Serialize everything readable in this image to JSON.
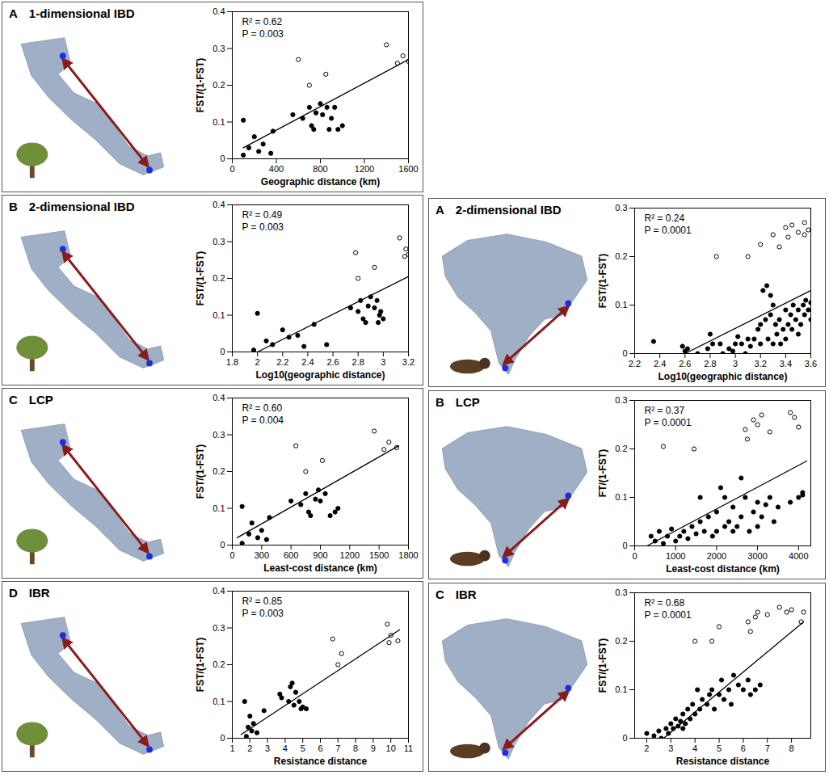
{
  "chart_data": [
    {
      "type": "scatter",
      "panel": "A",
      "title": "1-dimensional IBD",
      "x_label": "Geographic distance (km)",
      "y_label": "FST/(1-FST)",
      "annotations": [
        "R² = 0.62",
        "P = 0.003"
      ],
      "xlim": [
        0,
        1600
      ],
      "xticks": [
        0,
        400,
        800,
        1200,
        1600
      ],
      "ylim": [
        0,
        0.4
      ],
      "yticks": [
        0,
        0.1,
        0.2,
        0.3,
        0.4
      ],
      "series": [
        {
          "type": "scatter",
          "marker": "filled",
          "color": "#000000",
          "x": [
            100,
            100,
            150,
            200,
            240,
            280,
            350,
            370,
            550,
            640,
            700,
            720,
            740,
            760,
            800,
            820,
            860,
            880,
            900,
            930,
            960,
            1000
          ],
          "values": [
            0.105,
            0.01,
            0.03,
            0.06,
            0.02,
            0.04,
            0.015,
            0.075,
            0.12,
            0.11,
            0.14,
            0.09,
            0.08,
            0.125,
            0.15,
            0.12,
            0.14,
            0.08,
            0.11,
            0.14,
            0.08,
            0.09
          ]
        },
        {
          "type": "scatter",
          "marker": "open",
          "color": "#000000",
          "x": [
            600,
            700,
            850,
            1400,
            1500,
            1550,
            1600
          ],
          "values": [
            0.27,
            0.2,
            0.23,
            0.31,
            0.26,
            0.28,
            0.265
          ]
        },
        {
          "type": "line",
          "color": "#000000",
          "x": [
            100,
            1600
          ],
          "values": [
            0.03,
            0.27
          ]
        }
      ]
    },
    {
      "type": "scatter",
      "panel": "B",
      "title": "2-dimensional IBD",
      "x_label": "Log10(geographic distance)",
      "y_label": "FST/(1-FST)",
      "annotations": [
        "R² = 0.49",
        "P = 0.003"
      ],
      "xlim": [
        1.8,
        3.2
      ],
      "xticks": [
        1.8,
        2,
        2.2,
        2.4,
        2.6,
        2.8,
        3,
        3.2
      ],
      "ylim": [
        0,
        0.4
      ],
      "yticks": [
        0,
        0.1,
        0.2,
        0.3,
        0.4
      ],
      "series": [
        {
          "type": "scatter",
          "marker": "filled",
          "color": "#000000",
          "x": [
            1.97,
            2.0,
            2.07,
            2.12,
            2.2,
            2.25,
            2.32,
            2.37,
            2.45,
            2.55,
            2.74,
            2.8,
            2.82,
            2.84,
            2.86,
            2.88,
            2.9,
            2.93,
            2.95,
            2.96,
            2.98,
            3.0,
            2.97
          ],
          "values": [
            0.005,
            0.105,
            0.03,
            0.02,
            0.06,
            0.04,
            0.045,
            0.015,
            0.075,
            0.02,
            0.12,
            0.11,
            0.14,
            0.09,
            0.08,
            0.125,
            0.15,
            0.12,
            0.14,
            0.08,
            0.11,
            0.09,
            0.1
          ]
        },
        {
          "type": "scatter",
          "marker": "open",
          "color": "#000000",
          "x": [
            2.78,
            2.8,
            2.93,
            3.13,
            3.17,
            3.18,
            3.2
          ],
          "values": [
            0.27,
            0.2,
            0.23,
            0.31,
            0.26,
            0.28,
            0.265
          ]
        },
        {
          "type": "line",
          "color": "#000000",
          "x": [
            2.0,
            3.2
          ],
          "values": [
            0.0,
            0.205
          ]
        }
      ]
    },
    {
      "type": "scatter",
      "panel": "C",
      "title": "LCP",
      "x_label": "Least-cost distance (km)",
      "y_label": "FST/(1-FST)",
      "annotations": [
        "R² = 0.60",
        "P = 0.004"
      ],
      "xlim": [
        0,
        1800
      ],
      "xticks": [
        0,
        300,
        600,
        900,
        1200,
        1500,
        1800
      ],
      "ylim": [
        0,
        0.4
      ],
      "yticks": [
        0,
        0.1,
        0.2,
        0.3,
        0.4
      ],
      "series": [
        {
          "type": "scatter",
          "marker": "filled",
          "color": "#000000",
          "x": [
            100,
            100,
            170,
            200,
            260,
            300,
            350,
            380,
            600,
            700,
            750,
            780,
            800,
            850,
            880,
            900,
            950,
            1000,
            1050,
            1080
          ],
          "values": [
            0.105,
            0.005,
            0.03,
            0.06,
            0.02,
            0.04,
            0.015,
            0.075,
            0.12,
            0.11,
            0.14,
            0.09,
            0.08,
            0.125,
            0.15,
            0.12,
            0.14,
            0.08,
            0.09,
            0.1
          ]
        },
        {
          "type": "scatter",
          "marker": "open",
          "color": "#000000",
          "x": [
            650,
            750,
            920,
            1450,
            1550,
            1600,
            1680
          ],
          "values": [
            0.27,
            0.2,
            0.23,
            0.31,
            0.26,
            0.28,
            0.265
          ]
        },
        {
          "type": "line",
          "color": "#000000",
          "x": [
            50,
            1700
          ],
          "values": [
            0.02,
            0.27
          ]
        }
      ]
    },
    {
      "type": "scatter",
      "panel": "D",
      "title": "IBR",
      "x_label": "Resistance distance",
      "y_label": "FST/(1-FST)",
      "annotations": [
        "R² = 0.85",
        "P = 0.003"
      ],
      "xlim": [
        1,
        11
      ],
      "xticks": [
        1,
        2,
        3,
        4,
        5,
        6,
        7,
        8,
        9,
        10,
        11
      ],
      "ylim": [
        0,
        0.4
      ],
      "yticks": [
        0,
        0.1,
        0.2,
        0.3,
        0.4
      ],
      "series": [
        {
          "type": "scatter",
          "marker": "filled",
          "color": "#000000",
          "x": [
            1.7,
            1.8,
            1.9,
            2.0,
            2.1,
            2.2,
            2.4,
            2.8,
            3.7,
            3.8,
            4.3,
            4.4,
            4.5,
            4.6,
            4.8,
            4.9,
            5.0,
            5.2,
            4.2
          ],
          "values": [
            0.1,
            0.005,
            0.03,
            0.06,
            0.02,
            0.04,
            0.015,
            0.075,
            0.12,
            0.11,
            0.14,
            0.15,
            0.09,
            0.125,
            0.1,
            0.08,
            0.085,
            0.08,
            0.1
          ]
        },
        {
          "type": "scatter",
          "marker": "open",
          "color": "#000000",
          "x": [
            6.7,
            7.0,
            7.2,
            9.8,
            9.9,
            10.0,
            10.4
          ],
          "values": [
            0.27,
            0.2,
            0.23,
            0.31,
            0.26,
            0.28,
            0.265
          ]
        },
        {
          "type": "line",
          "color": "#000000",
          "x": [
            1.5,
            10.5
          ],
          "values": [
            0.01,
            0.295
          ]
        }
      ]
    },
    {
      "type": "scatter",
      "panel": "A",
      "title": "2-dimensional IBD",
      "x_label": "Log10(geographic distance)",
      "y_label": "FST/(1-FST)",
      "annotations": [
        "R² = 0.24",
        "P = 0.0001"
      ],
      "xlim": [
        2.2,
        3.6
      ],
      "xticks": [
        2.2,
        2.4,
        2.6,
        2.8,
        3,
        3.2,
        3.4,
        3.6
      ],
      "ylim": [
        0,
        0.3
      ],
      "yticks": [
        0,
        0.1,
        0.2,
        0.3
      ],
      "series": [
        {
          "type": "scatter",
          "marker": "filled",
          "color": "#000000",
          "x": [
            2.35,
            2.58,
            2.6,
            2.62,
            2.7,
            2.78,
            2.8,
            2.82,
            2.88,
            2.9,
            2.95,
            2.98,
            3.0,
            3.02,
            3.05,
            3.08,
            3.1,
            3.12,
            3.15,
            3.18,
            3.2,
            3.2,
            3.22,
            3.24,
            3.25,
            3.26,
            3.28,
            3.28,
            3.3,
            3.3,
            3.32,
            3.33,
            3.35,
            3.36,
            3.38,
            3.4,
            3.4,
            3.42,
            3.44,
            3.45,
            3.46,
            3.48,
            3.5,
            3.5,
            3.52,
            3.54,
            3.55,
            3.56,
            3.58,
            3.6,
            3.6
          ],
          "values": [
            0.025,
            0.015,
            0.005,
            0.01,
            0.0,
            0.01,
            0.04,
            0.02,
            0.02,
            0.0,
            0.01,
            0.005,
            0.02,
            0.035,
            0.02,
            0.0,
            0.03,
            0.015,
            0.03,
            0.05,
            0.02,
            0.06,
            0.13,
            0.07,
            0.14,
            0.03,
            0.08,
            0.12,
            0.02,
            0.1,
            0.06,
            0.04,
            0.07,
            0.02,
            0.05,
            0.09,
            0.03,
            0.06,
            0.08,
            0.05,
            0.1,
            0.07,
            0.04,
            0.09,
            0.06,
            0.1,
            0.08,
            0.11,
            0.09,
            0.105,
            0.07
          ]
        },
        {
          "type": "scatter",
          "marker": "open",
          "color": "#000000",
          "x": [
            2.85,
            3.1,
            3.2,
            3.3,
            3.35,
            3.4,
            3.42,
            3.45,
            3.5,
            3.55,
            3.58,
            3.55
          ],
          "values": [
            0.2,
            0.2,
            0.225,
            0.245,
            0.22,
            0.26,
            0.24,
            0.265,
            0.25,
            0.27,
            0.255,
            0.245
          ]
        },
        {
          "type": "line",
          "color": "#000000",
          "x": [
            2.6,
            3.6
          ],
          "values": [
            0.0,
            0.13
          ]
        }
      ]
    },
    {
      "type": "scatter",
      "panel": "B",
      "title": "LCP",
      "x_label": "Least-cost distance (km)",
      "y_label": "FT/(1-FST)",
      "annotations": [
        "R² = 0.37",
        "P = 0.0001"
      ],
      "xlim": [
        0,
        4300
      ],
      "xticks": [
        0,
        1000,
        2000,
        3000,
        4000
      ],
      "ylim": [
        0,
        0.3
      ],
      "yticks": [
        0,
        0.1,
        0.2,
        0.3
      ],
      "series": [
        {
          "type": "scatter",
          "marker": "filled",
          "color": "#000000",
          "x": [
            400,
            500,
            600,
            700,
            800,
            900,
            1000,
            1100,
            1200,
            1300,
            1400,
            1500,
            1600,
            1600,
            1700,
            1800,
            1900,
            2000,
            2000,
            2100,
            2200,
            2200,
            2300,
            2400,
            2400,
            2500,
            2600,
            2600,
            2700,
            2800,
            2900,
            3000,
            3000,
            3100,
            3200,
            3300,
            3400,
            3500,
            3800,
            4000,
            4100,
            4100
          ],
          "values": [
            0.02,
            0.01,
            0.03,
            0.005,
            0.02,
            0.035,
            0.01,
            0.02,
            0.03,
            0.015,
            0.04,
            0.025,
            0.05,
            0.1,
            0.03,
            0.06,
            0.02,
            0.07,
            0.03,
            0.12,
            0.1,
            0.04,
            0.05,
            0.03,
            0.08,
            0.04,
            0.14,
            0.06,
            0.1,
            0.03,
            0.07,
            0.09,
            0.04,
            0.06,
            0.085,
            0.1,
            0.05,
            0.08,
            0.09,
            0.1,
            0.11,
            0.105
          ]
        },
        {
          "type": "scatter",
          "marker": "open",
          "color": "#000000",
          "x": [
            700,
            1450,
            2700,
            2750,
            2900,
            3000,
            3100,
            3300,
            3800,
            3900,
            4000
          ],
          "values": [
            0.205,
            0.2,
            0.24,
            0.22,
            0.26,
            0.25,
            0.27,
            0.235,
            0.275,
            0.265,
            0.245
          ]
        },
        {
          "type": "line",
          "color": "#000000",
          "x": [
            300,
            4200
          ],
          "values": [
            0.0,
            0.175
          ]
        }
      ]
    },
    {
      "type": "scatter",
      "panel": "C",
      "title": "IBR",
      "x_label": "Resistance distance",
      "y_label": "FST/(1-FST)",
      "annotations": [
        "R² = 0.68",
        "P = 0.0001"
      ],
      "xlim": [
        1.5,
        8.8
      ],
      "xticks": [
        2,
        3,
        4,
        5,
        6,
        7,
        8
      ],
      "ylim": [
        0,
        0.3
      ],
      "yticks": [
        0,
        0.1,
        0.2,
        0.3
      ],
      "series": [
        {
          "type": "scatter",
          "marker": "filled",
          "color": "#000000",
          "x": [
            2.0,
            2.3,
            2.5,
            2.6,
            2.8,
            2.9,
            3.0,
            3.1,
            3.2,
            3.3,
            3.4,
            3.5,
            3.6,
            3.7,
            3.8,
            3.9,
            4.0,
            4.1,
            4.2,
            4.3,
            4.5,
            4.6,
            4.8,
            5.0,
            5.1,
            5.2,
            5.4,
            5.5,
            5.6,
            5.8,
            6.0,
            6.2,
            6.3,
            6.5,
            6.7,
            4.7,
            3.5
          ],
          "values": [
            0.01,
            0.005,
            0.015,
            0.0,
            0.02,
            0.01,
            0.03,
            0.02,
            0.04,
            0.025,
            0.035,
            0.05,
            0.03,
            0.06,
            0.04,
            0.07,
            0.05,
            0.1,
            0.06,
            0.08,
            0.07,
            0.09,
            0.06,
            0.09,
            0.12,
            0.08,
            0.1,
            0.07,
            0.13,
            0.11,
            0.1,
            0.12,
            0.09,
            0.1,
            0.11,
            0.1,
            0.02
          ]
        },
        {
          "type": "scatter",
          "marker": "open",
          "color": "#000000",
          "x": [
            4.0,
            4.7,
            5.0,
            6.2,
            6.3,
            6.5,
            6.6,
            7.0,
            7.5,
            7.8,
            8.0,
            8.5,
            8.4
          ],
          "values": [
            0.2,
            0.2,
            0.23,
            0.24,
            0.22,
            0.25,
            0.26,
            0.255,
            0.27,
            0.26,
            0.265,
            0.26,
            0.24
          ]
        },
        {
          "type": "line",
          "color": "#000000",
          "x": [
            2.7,
            8.5
          ],
          "values": [
            0.0,
            0.24
          ]
        }
      ]
    }
  ]
}
